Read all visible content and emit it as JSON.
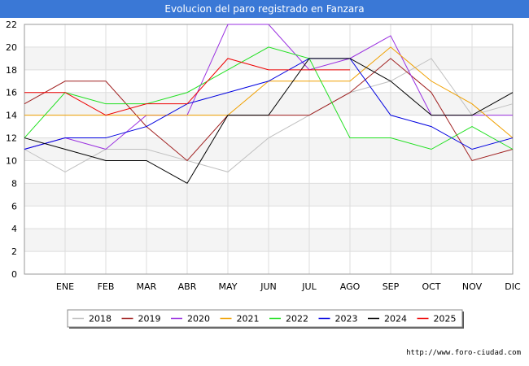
{
  "header": {
    "title": "Evolucion del paro registrado en Fanzara"
  },
  "source": "http://www.foro-ciudad.com",
  "chart_data": {
    "type": "line",
    "title": "Evolucion del paro registrado en Fanzara",
    "xlabel": "",
    "ylabel": "",
    "categories": [
      "",
      "ENE",
      "FEB",
      "MAR",
      "ABR",
      "MAY",
      "JUN",
      "JUL",
      "AGO",
      "SEP",
      "OCT",
      "NOV",
      "DIC"
    ],
    "ylim": [
      0,
      22
    ],
    "yticks": [
      0,
      2,
      4,
      6,
      8,
      10,
      12,
      14,
      16,
      18,
      20,
      22
    ],
    "grid": true,
    "legend_position": "bottom",
    "series": [
      {
        "name": "2018",
        "color": "#c0c0c0",
        "values": [
          11,
          9,
          11,
          11,
          10,
          9,
          12,
          14,
          16,
          17,
          19,
          14,
          15
        ]
      },
      {
        "name": "2019",
        "color": "#a02020",
        "values": [
          15,
          17,
          17,
          13,
          10,
          14,
          14,
          14,
          16,
          19,
          16,
          10,
          11
        ]
      },
      {
        "name": "2020",
        "color": "#9a30e0",
        "values": [
          11,
          12,
          11,
          14,
          14,
          22,
          22,
          18,
          19,
          21,
          14,
          14,
          14
        ]
      },
      {
        "name": "2021",
        "color": "#f0a000",
        "values": [
          14,
          14,
          14,
          14,
          14,
          14,
          17,
          17,
          17,
          20,
          17,
          15,
          12
        ]
      },
      {
        "name": "2022",
        "color": "#20e020",
        "values": [
          12,
          16,
          15,
          15,
          16,
          18,
          20,
          19,
          12,
          12,
          11,
          13,
          11
        ]
      },
      {
        "name": "2023",
        "color": "#0000e0",
        "values": [
          11,
          12,
          12,
          13,
          15,
          16,
          17,
          19,
          19,
          14,
          13,
          11,
          12
        ]
      },
      {
        "name": "2024",
        "color": "#000000",
        "values": [
          12,
          11,
          10,
          10,
          8,
          14,
          14,
          19,
          19,
          17,
          14,
          14,
          16
        ]
      },
      {
        "name": "2025",
        "color": "#ee0000",
        "values": [
          16,
          16,
          14,
          15,
          15,
          19,
          18,
          18,
          18,
          null,
          null,
          null,
          null
        ]
      }
    ]
  }
}
